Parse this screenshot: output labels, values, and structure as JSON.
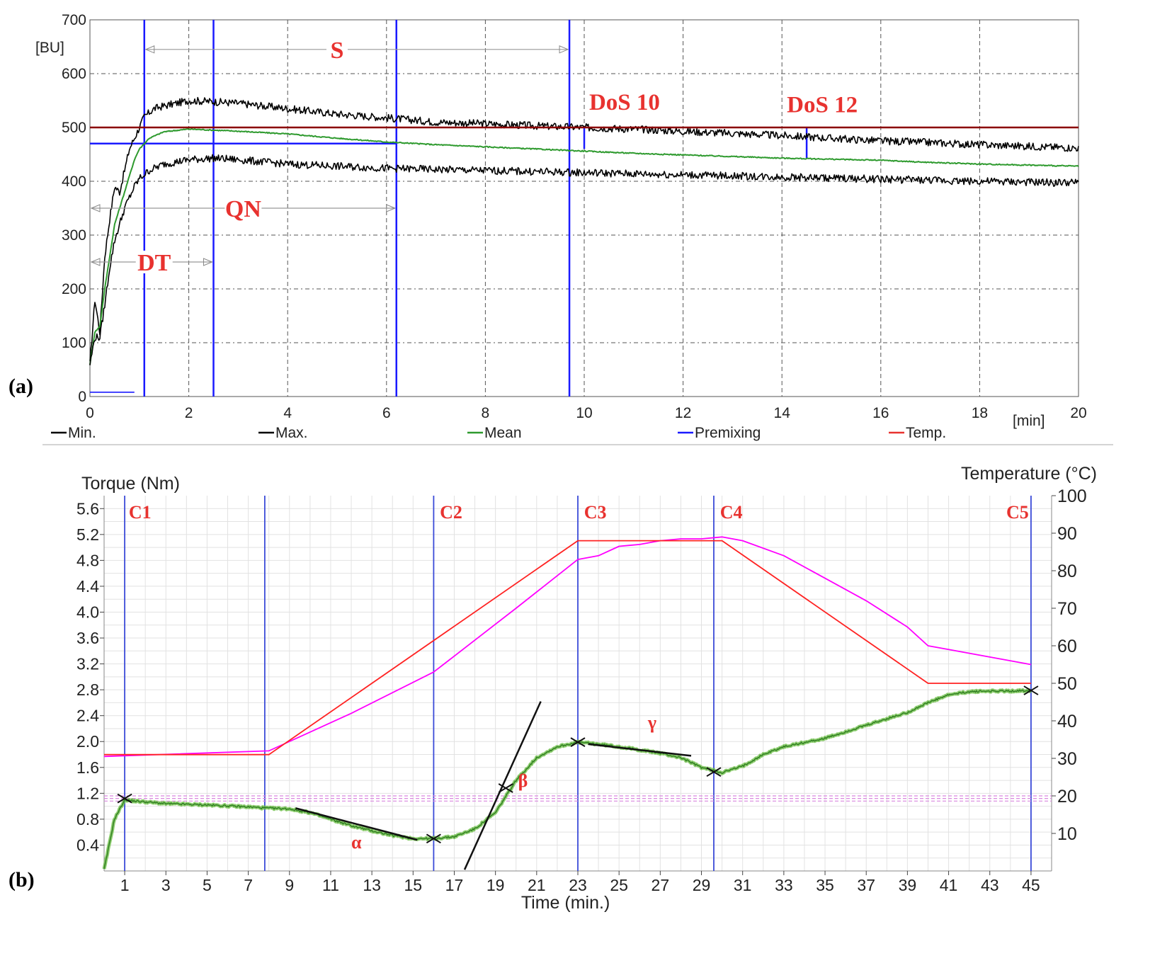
{
  "chart_data": [
    {
      "type": "line",
      "panel_label": "(a)",
      "ylabel": "[BU]",
      "xlabel": "[min]",
      "xlim": [
        0,
        20
      ],
      "ylim": [
        0,
        700
      ],
      "x_ticks": [
        "0",
        "2",
        "4",
        "6",
        "8",
        "10",
        "12",
        "14",
        "16",
        "18",
        "20"
      ],
      "y_ticks": [
        "0",
        "100",
        "200",
        "300",
        "400",
        "500",
        "600",
        "700"
      ],
      "grid": true,
      "legend": [
        {
          "name": "Min.",
          "color": "#000000"
        },
        {
          "name": "Max.",
          "color": "#000000"
        },
        {
          "name": "Mean",
          "color": "#2e9a2e"
        },
        {
          "name": "Premixing",
          "color": "#1a1aff"
        },
        {
          "name": "Temp.",
          "color": "#e8322f"
        }
      ],
      "series": [
        {
          "name": "Max.",
          "color": "#000000",
          "x": [
            0,
            0.1,
            0.2,
            0.3,
            0.4,
            0.5,
            0.6,
            0.7,
            0.8,
            0.9,
            1.0,
            1.1,
            1.3,
            1.5,
            2,
            2.5,
            3,
            3.5,
            4,
            5,
            6,
            7,
            8,
            9,
            10,
            11,
            12,
            13,
            14,
            15,
            16,
            17,
            18,
            19,
            20
          ],
          "y": [
            60,
            180,
            120,
            260,
            330,
            390,
            380,
            420,
            460,
            480,
            500,
            520,
            535,
            540,
            550,
            548,
            545,
            540,
            535,
            525,
            518,
            510,
            507,
            503,
            500,
            497,
            493,
            489,
            485,
            480,
            475,
            472,
            468,
            465,
            462
          ]
        },
        {
          "name": "Mean",
          "color": "#2e9a2e",
          "x": [
            0,
            0.1,
            0.2,
            0.3,
            0.4,
            0.5,
            0.6,
            0.7,
            0.8,
            0.9,
            1.0,
            1.2,
            1.5,
            2,
            2.5,
            3,
            4,
            5,
            6,
            7,
            8,
            9,
            10,
            11,
            12,
            13,
            14,
            15,
            16,
            17,
            18,
            19,
            20
          ],
          "y": [
            60,
            120,
            130,
            200,
            260,
            320,
            350,
            380,
            410,
            440,
            460,
            480,
            492,
            497,
            495,
            493,
            488,
            480,
            473,
            468,
            464,
            460,
            456,
            452,
            449,
            446,
            443,
            441,
            439,
            435,
            432,
            430,
            428
          ]
        },
        {
          "name": "Min.",
          "color": "#000000",
          "x": [
            0,
            0.1,
            0.2,
            0.3,
            0.4,
            0.5,
            0.6,
            0.7,
            0.8,
            0.9,
            1.0,
            1.2,
            1.5,
            2,
            2.5,
            3,
            4,
            5,
            6,
            7,
            8,
            9,
            10,
            11,
            12,
            13,
            14,
            15,
            16,
            17,
            18,
            19,
            20
          ],
          "y": [
            60,
            110,
            110,
            170,
            240,
            290,
            320,
            350,
            370,
            390,
            405,
            420,
            432,
            440,
            443,
            440,
            432,
            428,
            424,
            422,
            420,
            418,
            416,
            414,
            412,
            410,
            408,
            406,
            404,
            402,
            400,
            398,
            397
          ]
        },
        {
          "name": "Premixing",
          "color": "#1a1aff",
          "x": [
            0,
            0.9
          ],
          "y": [
            8,
            8
          ]
        },
        {
          "name": "Temp.",
          "color": "#8b0000",
          "x": [
            0,
            20
          ],
          "y": [
            500,
            500
          ]
        }
      ],
      "reference_lines": [
        {
          "orientation": "vertical",
          "x": 1.1
        },
        {
          "orientation": "vertical",
          "x": 2.5
        },
        {
          "orientation": "vertical",
          "x": 6.2
        },
        {
          "orientation": "vertical",
          "x": 9.7
        },
        {
          "orientation": "vertical_short",
          "x": 10,
          "y_from": 460,
          "y_to": 500
        },
        {
          "orientation": "vertical_short",
          "x": 14.5,
          "y_from": 443,
          "y_to": 500
        },
        {
          "orientation": "horizontal",
          "y": 470,
          "x_from": 0,
          "x_to": 6.2
        }
      ],
      "annotations": [
        {
          "text": "S",
          "x_from": 1.1,
          "x_to": 9.7,
          "y": 645
        },
        {
          "text": "QN",
          "x_from": 0,
          "x_to": 6.2,
          "y": 350
        },
        {
          "text": "DT",
          "x_from": 0,
          "x_to": 2.5,
          "y": 250
        },
        {
          "text": "DoS 10",
          "x": 10.1,
          "y": 520
        },
        {
          "text": "DoS 12",
          "x": 14.1,
          "y": 515
        }
      ]
    },
    {
      "type": "line",
      "panel_label": "(b)",
      "ylabel": "Torque (Nm)",
      "y2label": "Temperature (°C)",
      "xlabel": "Time (min.)",
      "xlim": [
        0,
        46
      ],
      "ylim": [
        0,
        5.8
      ],
      "y2lim": [
        0,
        100
      ],
      "x_ticks": [
        "1",
        "3",
        "5",
        "7",
        "9",
        "11",
        "13",
        "15",
        "17",
        "19",
        "21",
        "23",
        "25",
        "27",
        "29",
        "31",
        "33",
        "35",
        "37",
        "39",
        "41",
        "43",
        "45"
      ],
      "y_ticks": [
        "0.4",
        "0.8",
        "1.2",
        "1.6",
        "2.0",
        "2.4",
        "2.8",
        "3.2",
        "3.6",
        "4.0",
        "4.4",
        "4.8",
        "5.2",
        "5.6"
      ],
      "y2_ticks": [
        "10",
        "20",
        "30",
        "40",
        "50",
        "60",
        "70",
        "80",
        "90",
        "100"
      ],
      "grid": true,
      "series": [
        {
          "name": "torque",
          "color": "#2e9a2e",
          "x": [
            0,
            0.5,
            1,
            1.5,
            3,
            5,
            7,
            8,
            9,
            10,
            11,
            12,
            13,
            14,
            15,
            16,
            17,
            18,
            19,
            20,
            21,
            22,
            23,
            24,
            25,
            26,
            27,
            28,
            29,
            30,
            31,
            32,
            33,
            35,
            37,
            39,
            40,
            41,
            42,
            43,
            44,
            45
          ],
          "y": [
            0.02,
            0.8,
            1.1,
            1.08,
            1.04,
            1.02,
            0.99,
            0.97,
            0.96,
            0.9,
            0.8,
            0.7,
            0.62,
            0.55,
            0.5,
            0.5,
            0.53,
            0.65,
            0.9,
            1.4,
            1.75,
            1.92,
            1.99,
            1.96,
            1.92,
            1.87,
            1.82,
            1.75,
            1.6,
            1.52,
            1.62,
            1.8,
            1.92,
            2.05,
            2.25,
            2.45,
            2.6,
            2.72,
            2.77,
            2.78,
            2.78,
            2.79
          ]
        },
        {
          "name": "temperature",
          "color": "#ff00ff",
          "axis": "y2",
          "x": [
            0,
            8,
            12,
            16,
            20,
            23,
            24,
            25,
            26,
            27,
            28,
            29,
            30,
            31,
            33,
            35,
            37,
            39,
            40,
            41,
            43,
            45
          ],
          "y": [
            30.5,
            32,
            42,
            53,
            70,
            83,
            84,
            86.5,
            87,
            88,
            88.5,
            88.5,
            89,
            88,
            84,
            78,
            72,
            65,
            60,
            59,
            57,
            55
          ]
        },
        {
          "name": "set temperature",
          "color": "#ff2222",
          "axis": "y2",
          "x": [
            0,
            8,
            23,
            30,
            40,
            45
          ],
          "y": [
            31,
            31,
            88,
            88,
            50,
            50
          ]
        }
      ],
      "reference_lines": [
        {
          "orientation": "vertical",
          "x": 1
        },
        {
          "orientation": "vertical",
          "x": 7.8
        },
        {
          "orientation": "vertical",
          "x": 16
        },
        {
          "orientation": "vertical",
          "x": 23
        },
        {
          "orientation": "vertical",
          "x": 29.6
        },
        {
          "orientation": "vertical",
          "x": 45
        },
        {
          "orientation": "horizontal_dashed",
          "y": 1.16
        },
        {
          "orientation": "horizontal_dashed",
          "y": 1.12
        },
        {
          "orientation": "horizontal_dashed",
          "y": 1.08
        }
      ],
      "tangents": [
        {
          "label": "α",
          "x1": 9.3,
          "y1": 0.97,
          "x2": 15.2,
          "y2": 0.48
        },
        {
          "label": "β",
          "x1": 17.5,
          "y1": 0.02,
          "x2": 21.2,
          "y2": 2.62
        },
        {
          "label": "γ",
          "x1": 23.5,
          "y1": 1.96,
          "x2": 28.5,
          "y2": 1.78
        }
      ],
      "markers": [
        {
          "x": 1,
          "y": 1.12
        },
        {
          "x": 16,
          "y": 0.5
        },
        {
          "x": 19.5,
          "y": 1.28
        },
        {
          "x": 23,
          "y": 1.99
        },
        {
          "x": 29.6,
          "y": 1.53
        },
        {
          "x": 45,
          "y": 2.79
        }
      ],
      "annotations": [
        {
          "text": "C1",
          "x": 1.2
        },
        {
          "text": "C2",
          "x": 16.3
        },
        {
          "text": "C3",
          "x": 23.3
        },
        {
          "text": "C4",
          "x": 29.9
        },
        {
          "text": "C5",
          "x": 43.8
        },
        {
          "text": "α",
          "x": 12,
          "y": 0.35
        },
        {
          "text": "β",
          "x": 20.1,
          "y": 1.3
        },
        {
          "text": "γ",
          "x": 26.4,
          "y": 2.2
        }
      ]
    }
  ]
}
